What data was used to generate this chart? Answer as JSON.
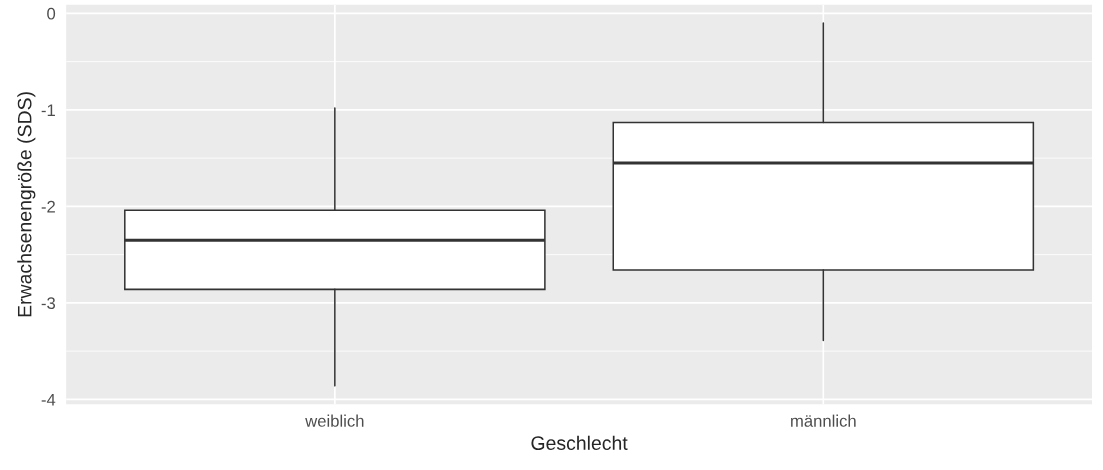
{
  "chart_data": {
    "type": "box",
    "xlabel": "Geschlecht",
    "ylabel": "Erwachsenengröße (SDS)",
    "categories": [
      "weiblich",
      "männlich"
    ],
    "boxes": [
      {
        "low": -3.86,
        "q1": -2.86,
        "median": -2.35,
        "q3": -2.04,
        "high": -0.98
      },
      {
        "low": -3.39,
        "q1": -2.66,
        "median": -1.55,
        "q3": -1.13,
        "high": -0.1
      }
    ],
    "ylim": [
      -4.05,
      0.09
    ],
    "yticks": [
      -4,
      -3,
      -2,
      -1,
      0
    ],
    "grid": true
  }
}
